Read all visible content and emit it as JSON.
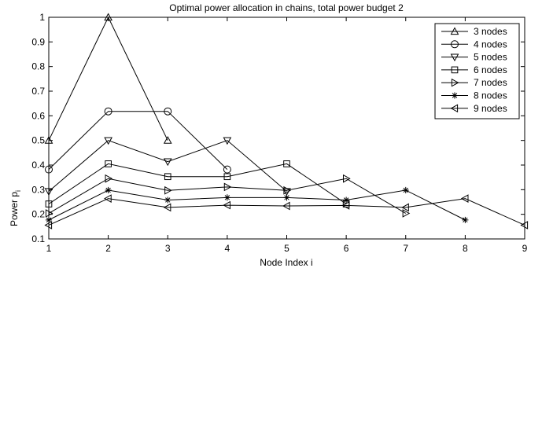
{
  "chart_data": {
    "type": "line",
    "title": "Optimal power allocation in chains, total power budget 2",
    "xlabel": "Node Index i",
    "ylabel": "Power p",
    "ylabel_subscript": "i",
    "xlim": [
      1,
      9
    ],
    "ylim": [
      0.1,
      1.0
    ],
    "xticks": [
      "1",
      "2",
      "3",
      "4",
      "5",
      "6",
      "7",
      "8",
      "9"
    ],
    "yticks": [
      "0.1",
      "0.2",
      "0.3",
      "0.4",
      "0.5",
      "0.6",
      "0.7",
      "0.8",
      "0.9",
      "1"
    ],
    "grid": false,
    "legend_position": "top-right",
    "line_color": "#000000",
    "series": [
      {
        "name": "3 nodes",
        "marker": "triangle-up",
        "x": [
          1,
          2,
          3
        ],
        "values": [
          0.5,
          1.0,
          0.5
        ]
      },
      {
        "name": "4 nodes",
        "marker": "circle",
        "x": [
          1,
          2,
          3,
          4
        ],
        "values": [
          0.382,
          0.618,
          0.618,
          0.382
        ]
      },
      {
        "name": "5 nodes",
        "marker": "triangle-down",
        "x": [
          1,
          2,
          3,
          4,
          5
        ],
        "values": [
          0.293,
          0.5,
          0.414,
          0.5,
          0.293
        ]
      },
      {
        "name": "6 nodes",
        "marker": "square",
        "x": [
          1,
          2,
          3,
          4,
          5,
          6
        ],
        "values": [
          0.242,
          0.405,
          0.353,
          0.353,
          0.405,
          0.242
        ]
      },
      {
        "name": "7 nodes",
        "marker": "triangle-right",
        "x": [
          1,
          2,
          3,
          4,
          5,
          6,
          7
        ],
        "values": [
          0.204,
          0.345,
          0.297,
          0.311,
          0.297,
          0.345,
          0.204
        ]
      },
      {
        "name": "8 nodes",
        "marker": "asterisk",
        "x": [
          1,
          2,
          3,
          4,
          5,
          6,
          7,
          8
        ],
        "values": [
          0.177,
          0.298,
          0.258,
          0.268,
          0.268,
          0.258,
          0.298,
          0.177
        ]
      },
      {
        "name": "9 nodes",
        "marker": "triangle-left",
        "x": [
          1,
          2,
          3,
          4,
          5,
          6,
          7,
          8,
          9
        ],
        "values": [
          0.156,
          0.264,
          0.228,
          0.237,
          0.234,
          0.236,
          0.228,
          0.264,
          0.156
        ]
      }
    ]
  }
}
